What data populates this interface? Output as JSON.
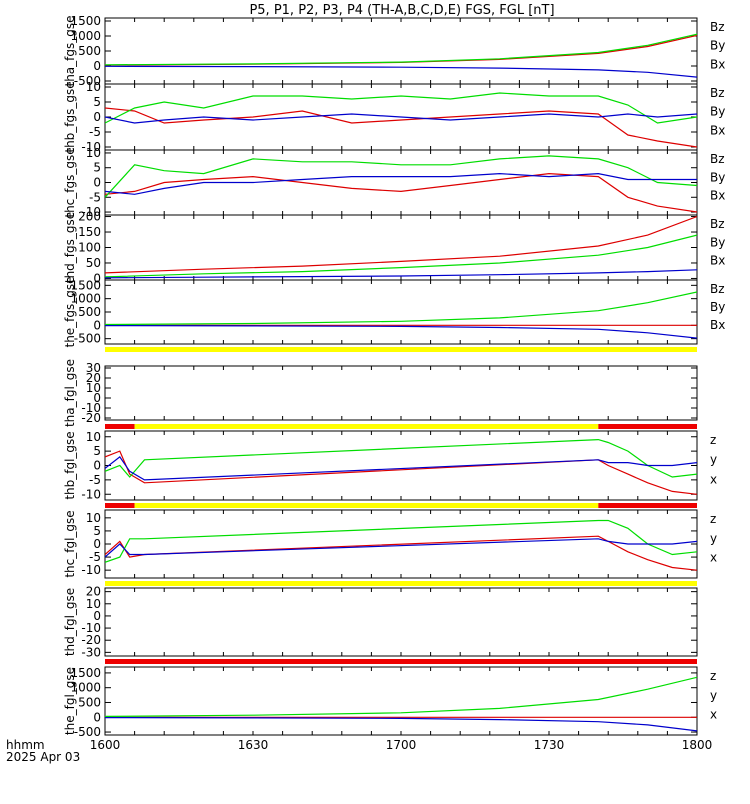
{
  "title": "P5, P1, P2, P3, P4 (TH-A,B,C,D,E) FGS, FGL [nT]",
  "footer": {
    "axis_label": "hhmm",
    "date": "2025 Apr 03"
  },
  "colors": {
    "x": "#0000cc",
    "y": "#00dd00",
    "z": "#dd0000",
    "bar_yellow": "#ffff00",
    "bar_red": "#ee0000"
  },
  "chart_data": [
    {
      "id": "tha_fgs",
      "type": "line",
      "ylabel": "tha_fgs_gse",
      "ylim": [
        -600,
        1600
      ],
      "yticks": [
        -500,
        0,
        500,
        1000,
        1500
      ],
      "xlim": [
        0,
        120
      ],
      "xtick_labels": [
        "1600",
        "1630",
        "1700",
        "1730",
        "1800"
      ],
      "series": [
        {
          "name": "Bz",
          "color": "#dd0000",
          "x": [
            0,
            30,
            60,
            80,
            100,
            110,
            120
          ],
          "y": [
            30,
            60,
            120,
            220,
            420,
            650,
            1020
          ]
        },
        {
          "name": "By",
          "color": "#00dd00",
          "x": [
            0,
            30,
            60,
            80,
            100,
            110,
            120
          ],
          "y": [
            40,
            70,
            130,
            240,
            450,
            690,
            1060
          ]
        },
        {
          "name": "Bx",
          "color": "#0000cc",
          "x": [
            0,
            30,
            60,
            80,
            100,
            110,
            120
          ],
          "y": [
            -10,
            -20,
            -40,
            -70,
            -130,
            -210,
            -370
          ]
        }
      ]
    },
    {
      "id": "thb_fgs",
      "type": "line",
      "ylabel": "thb_fgs_gse",
      "ylim": [
        -11,
        11
      ],
      "yticks": [
        -10,
        -5,
        0,
        5,
        10
      ],
      "xlim": [
        0,
        120
      ],
      "series": [
        {
          "name": "Bz",
          "color": "#dd0000",
          "x": [
            0,
            6,
            12,
            20,
            30,
            40,
            50,
            60,
            70,
            80,
            90,
            100,
            106,
            112,
            120
          ],
          "y": [
            3,
            2,
            -2,
            -1,
            0,
            2,
            -2,
            -1,
            0,
            1,
            2,
            1,
            -6,
            -8,
            -10
          ]
        },
        {
          "name": "By",
          "color": "#00dd00",
          "x": [
            0,
            6,
            12,
            20,
            30,
            40,
            50,
            60,
            70,
            80,
            90,
            100,
            106,
            112,
            120
          ],
          "y": [
            -2,
            3,
            5,
            3,
            7,
            7,
            6,
            7,
            6,
            8,
            7,
            7,
            4,
            -2,
            0
          ]
        },
        {
          "name": "Bx",
          "color": "#0000cc",
          "x": [
            0,
            6,
            12,
            20,
            30,
            40,
            50,
            60,
            70,
            80,
            90,
            100,
            106,
            112,
            120
          ],
          "y": [
            0,
            -2,
            -1,
            0,
            -1,
            0,
            1,
            0,
            -1,
            0,
            1,
            0,
            1,
            0,
            1
          ]
        }
      ]
    },
    {
      "id": "thc_fgs",
      "type": "line",
      "ylabel": "thc_fgs_gse",
      "ylim": [
        -11,
        11
      ],
      "yticks": [
        -10,
        -5,
        0,
        5,
        10
      ],
      "xlim": [
        0,
        120
      ],
      "series": [
        {
          "name": "Bz",
          "color": "#dd0000",
          "x": [
            0,
            6,
            12,
            20,
            30,
            40,
            50,
            60,
            70,
            80,
            90,
            100,
            106,
            112,
            120
          ],
          "y": [
            -4,
            -3,
            0,
            1,
            2,
            0,
            -2,
            -3,
            -1,
            1,
            3,
            2,
            -5,
            -8,
            -10
          ]
        },
        {
          "name": "By",
          "color": "#00dd00",
          "x": [
            0,
            6,
            12,
            20,
            30,
            40,
            50,
            60,
            70,
            80,
            90,
            100,
            106,
            112,
            120
          ],
          "y": [
            -5,
            6,
            4,
            3,
            8,
            7,
            7,
            6,
            6,
            8,
            9,
            8,
            5,
            0,
            -1
          ]
        },
        {
          "name": "Bx",
          "color": "#0000cc",
          "x": [
            0,
            6,
            12,
            20,
            30,
            40,
            50,
            60,
            70,
            80,
            90,
            100,
            106,
            112,
            120
          ],
          "y": [
            -3,
            -4,
            -2,
            0,
            0,
            1,
            2,
            2,
            2,
            3,
            2,
            3,
            1,
            1,
            1
          ]
        }
      ]
    },
    {
      "id": "thd_fgs",
      "type": "line",
      "ylabel": "thd_fgs_gse",
      "ylim": [
        -5,
        205
      ],
      "yticks": [
        0,
        50,
        100,
        150,
        200
      ],
      "xlim": [
        0,
        120
      ],
      "series": [
        {
          "name": "Bz",
          "color": "#dd0000",
          "x": [
            0,
            20,
            40,
            60,
            80,
            100,
            110,
            120
          ],
          "y": [
            18,
            30,
            40,
            55,
            72,
            105,
            140,
            200
          ]
        },
        {
          "name": "By",
          "color": "#00dd00",
          "x": [
            0,
            20,
            40,
            60,
            80,
            100,
            110,
            120
          ],
          "y": [
            5,
            15,
            22,
            35,
            50,
            75,
            100,
            140
          ]
        },
        {
          "name": "Bx",
          "color": "#0000cc",
          "x": [
            0,
            20,
            40,
            60,
            80,
            100,
            110,
            120
          ],
          "y": [
            2,
            4,
            6,
            8,
            12,
            18,
            22,
            28
          ]
        }
      ]
    },
    {
      "id": "the_fgs",
      "type": "line",
      "ylabel": "the_fgs_gse",
      "ylim": [
        -700,
        1700
      ],
      "yticks": [
        -500,
        0,
        500,
        1000,
        1500
      ],
      "xlim": [
        0,
        120
      ],
      "series": [
        {
          "name": "Bz",
          "color": "#dd0000",
          "x": [
            0,
            60,
            120
          ],
          "y": [
            0,
            0,
            0
          ]
        },
        {
          "name": "By",
          "color": "#00dd00",
          "x": [
            0,
            30,
            60,
            80,
            100,
            110,
            120
          ],
          "y": [
            30,
            70,
            150,
            280,
            550,
            850,
            1250
          ]
        },
        {
          "name": "Bx",
          "color": "#0000cc",
          "x": [
            0,
            30,
            60,
            80,
            100,
            110,
            120
          ],
          "y": [
            -10,
            -20,
            -40,
            -80,
            -150,
            -280,
            -480
          ]
        }
      ]
    },
    {
      "id": "tha_fgl",
      "type": "line",
      "ylabel": "tha_fgl_gse",
      "ylim": [
        -22,
        32
      ],
      "yticks": [
        -20,
        -10,
        0,
        10,
        20,
        30
      ],
      "xlim": [
        0,
        120
      ],
      "series": [
        {
          "name": "z",
          "color": "#dd0000",
          "x": [],
          "y": []
        },
        {
          "name": "y",
          "color": "#00dd00",
          "x": [],
          "y": []
        },
        {
          "name": "x",
          "color": "#0000cc",
          "x": [],
          "y": []
        }
      ]
    },
    {
      "id": "thb_fgl",
      "type": "line",
      "ylabel": "thb_fgl_gse",
      "ylim": [
        -12,
        12
      ],
      "yticks": [
        -10,
        -5,
        0,
        5,
        10
      ],
      "xlim": [
        0,
        120
      ],
      "series": [
        {
          "name": "z",
          "color": "#dd0000",
          "x": [
            0,
            3,
            5,
            8,
            100,
            102,
            106,
            110,
            115,
            120
          ],
          "y": [
            3,
            5,
            -3,
            -6,
            2,
            0,
            -3,
            -6,
            -9,
            -10
          ]
        },
        {
          "name": "y",
          "color": "#00dd00",
          "x": [
            0,
            3,
            5,
            8,
            100,
            102,
            106,
            110,
            115,
            120
          ],
          "y": [
            -2,
            0,
            -4,
            2,
            9,
            8,
            5,
            0,
            -4,
            -3
          ]
        },
        {
          "name": "x",
          "color": "#0000cc",
          "x": [
            0,
            3,
            5,
            8,
            100,
            102,
            106,
            110,
            115,
            120
          ],
          "y": [
            -1,
            3,
            -2,
            -5,
            2,
            1,
            1,
            0,
            0,
            1
          ]
        }
      ]
    },
    {
      "id": "thc_fgl",
      "type": "line",
      "ylabel": "thc_fgl_gse",
      "ylim": [
        -13,
        13
      ],
      "yticks": [
        -10,
        -5,
        0,
        5,
        10
      ],
      "xlim": [
        0,
        120
      ],
      "series": [
        {
          "name": "z",
          "color": "#dd0000",
          "x": [
            0,
            3,
            5,
            8,
            100,
            102,
            106,
            110,
            115,
            120
          ],
          "y": [
            -4,
            1,
            -5,
            -4,
            3,
            1,
            -3,
            -6,
            -9,
            -10
          ]
        },
        {
          "name": "y",
          "color": "#00dd00",
          "x": [
            0,
            3,
            5,
            8,
            100,
            102,
            106,
            110,
            115,
            120
          ],
          "y": [
            -7,
            -5,
            2,
            2,
            9,
            9,
            6,
            0,
            -4,
            -3
          ]
        },
        {
          "name": "x",
          "color": "#0000cc",
          "x": [
            0,
            3,
            5,
            8,
            100,
            102,
            106,
            110,
            115,
            120
          ],
          "y": [
            -5,
            0,
            -4,
            -4,
            2,
            1,
            0,
            0,
            0,
            1
          ]
        }
      ]
    },
    {
      "id": "thd_fgl",
      "type": "line",
      "ylabel": "thd_fgl_gse",
      "ylim": [
        -33,
        23
      ],
      "yticks": [
        -30,
        -20,
        -10,
        0,
        10,
        20
      ],
      "xlim": [
        0,
        120
      ],
      "series": [
        {
          "name": "z",
          "color": "#dd0000",
          "x": [],
          "y": []
        },
        {
          "name": "y",
          "color": "#00dd00",
          "x": [],
          "y": []
        },
        {
          "name": "x",
          "color": "#0000cc",
          "x": [],
          "y": []
        }
      ]
    },
    {
      "id": "the_fgl",
      "type": "line",
      "ylabel": "the_fgl_gse",
      "ylim": [
        -600,
        1700
      ],
      "yticks": [
        -500,
        0,
        500,
        1000,
        1500
      ],
      "xlim": [
        0,
        120
      ],
      "series": [
        {
          "name": "z",
          "color": "#dd0000",
          "x": [
            0,
            60,
            120
          ],
          "y": [
            0,
            0,
            0
          ]
        },
        {
          "name": "y",
          "color": "#00dd00",
          "x": [
            0,
            30,
            60,
            80,
            100,
            110,
            120
          ],
          "y": [
            30,
            70,
            150,
            300,
            600,
            950,
            1350
          ]
        },
        {
          "name": "x",
          "color": "#0000cc",
          "x": [
            0,
            30,
            60,
            80,
            100,
            110,
            120
          ],
          "y": [
            -10,
            -20,
            -40,
            -80,
            -150,
            -260,
            -460
          ]
        }
      ]
    }
  ],
  "availability_bars": [
    {
      "id": "tha_fgl",
      "segments": [
        {
          "from": 0,
          "to": 120,
          "color": "#ffff00"
        }
      ]
    },
    {
      "id": "thb_fgl",
      "segments": [
        {
          "from": 0,
          "to": 6,
          "color": "#ee0000"
        },
        {
          "from": 6,
          "to": 100,
          "color": "#ffff00"
        },
        {
          "from": 100,
          "to": 120,
          "color": "#ee0000"
        }
      ]
    },
    {
      "id": "thc_fgl",
      "segments": [
        {
          "from": 0,
          "to": 6,
          "color": "#ee0000"
        },
        {
          "from": 6,
          "to": 100,
          "color": "#ffff00"
        },
        {
          "from": 100,
          "to": 120,
          "color": "#ee0000"
        }
      ]
    },
    {
      "id": "thd_fgl",
      "segments": [
        {
          "from": 0,
          "to": 120,
          "color": "#ffff00"
        }
      ]
    },
    {
      "id": "the_fgl",
      "segments": [
        {
          "from": 0,
          "to": 120,
          "color": "#ee0000"
        }
      ]
    }
  ],
  "legend_labels": {
    "fgs": [
      "Bz",
      "By",
      "Bx"
    ],
    "fgl": [
      "z",
      "y",
      "x"
    ]
  }
}
